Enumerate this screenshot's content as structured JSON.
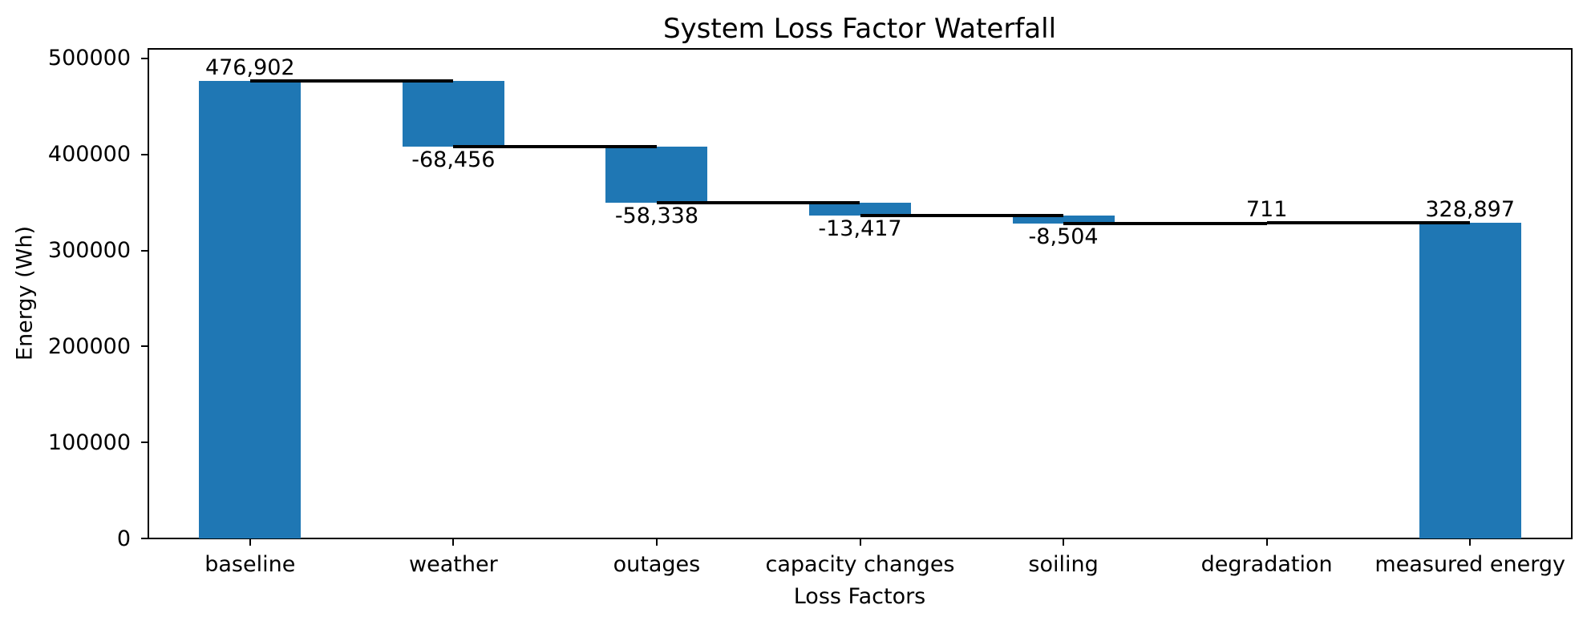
{
  "figure": {
    "background": "#ffffff"
  },
  "chart_data": {
    "type": "bar",
    "subtype": "waterfall",
    "title": "System Loss Factor Waterfall",
    "xlabel": "Loss Factors",
    "ylabel": "Energy (Wh)",
    "categories": [
      "baseline",
      "weather",
      "outages",
      "capacity changes",
      "soiling",
      "degradation",
      "measured energy"
    ],
    "bars": [
      {
        "category": "baseline",
        "value": 476902,
        "kind": "total",
        "label": "476,902"
      },
      {
        "category": "weather",
        "value": -68456,
        "kind": "delta",
        "label": "-68,456"
      },
      {
        "category": "outages",
        "value": -58338,
        "kind": "delta",
        "label": "-58,338"
      },
      {
        "category": "capacity changes",
        "value": -13417,
        "kind": "delta",
        "label": "-13,417"
      },
      {
        "category": "soiling",
        "value": -8504,
        "kind": "delta",
        "label": "-8,504"
      },
      {
        "category": "degradation",
        "value": 711,
        "kind": "delta",
        "label": "711"
      },
      {
        "category": "measured energy",
        "value": 328897,
        "kind": "total",
        "label": "328,897"
      }
    ],
    "cumulative_levels": [
      476902,
      408446,
      350108,
      336691,
      328187,
      328898,
      328897
    ],
    "y_ticks": [
      0,
      100000,
      200000,
      300000,
      400000,
      500000
    ],
    "y_tick_labels": [
      "0",
      "100000",
      "200000",
      "300000",
      "400000",
      "500000"
    ],
    "ylim": [
      0,
      510000
    ],
    "grid": false,
    "legend": null,
    "bar_color": "#1f77b4",
    "connector_color": "#000000",
    "text_color": "#000000"
  }
}
